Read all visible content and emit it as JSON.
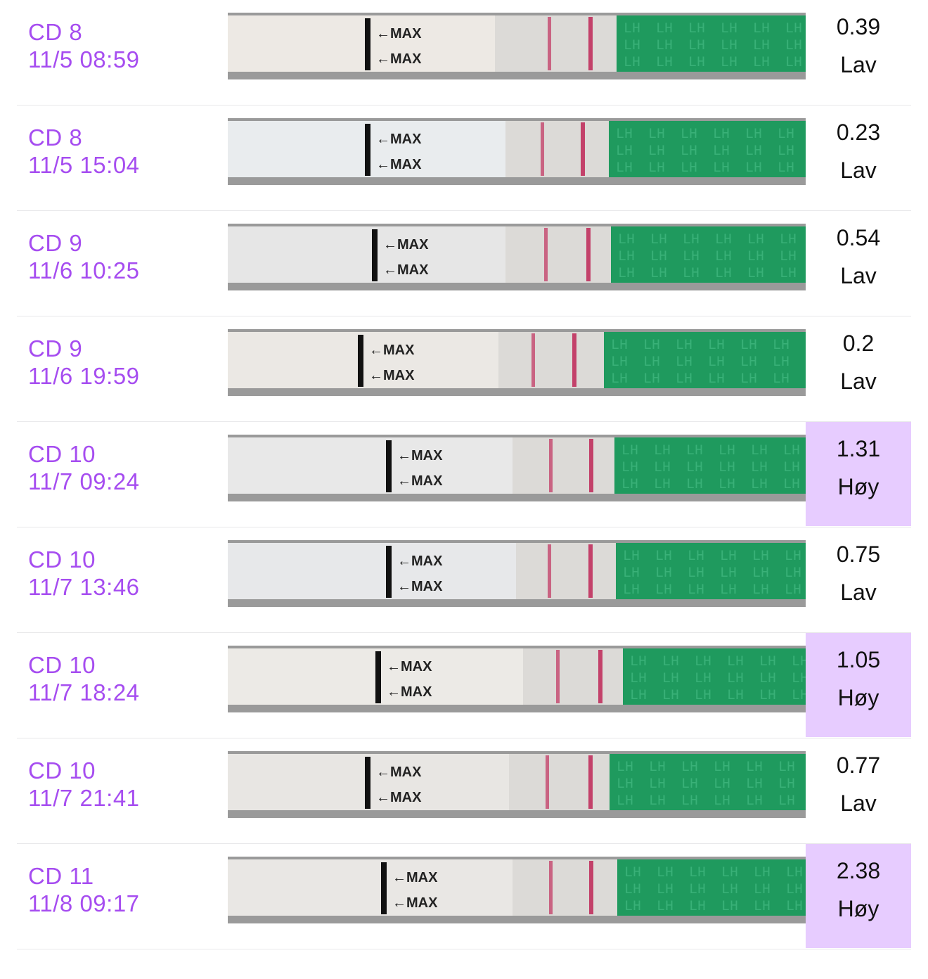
{
  "colors": {
    "label": "#a64df0",
    "high_highlight": "#e7ccff",
    "strip_green": "#1f9a5e",
    "test_line": "#c0305e"
  },
  "rows": [
    {
      "cd": "CD 8",
      "datetime": "11/5 08:59",
      "value": "0.39",
      "level": "Lav",
      "high": false,
      "strip_max_labels": [
        "MAX",
        "MAX"
      ],
      "strip_window_text": "LH"
    },
    {
      "cd": "CD 8",
      "datetime": "11/5 15:04",
      "value": "0.23",
      "level": "Lav",
      "high": false,
      "strip_max_labels": [
        "MAX",
        "MAX"
      ],
      "strip_window_text": "LH"
    },
    {
      "cd": "CD 9",
      "datetime": "11/6 10:25",
      "value": "0.54",
      "level": "Lav",
      "high": false,
      "strip_max_labels": [
        "MAX",
        "MAX"
      ],
      "strip_window_text": "LH"
    },
    {
      "cd": "CD 9",
      "datetime": "11/6 19:59",
      "value": "0.2",
      "level": "Lav",
      "high": false,
      "strip_max_labels": [
        "MAX",
        "MAX"
      ],
      "strip_window_text": "LH"
    },
    {
      "cd": "CD 10",
      "datetime": "11/7 09:24",
      "value": "1.31",
      "level": "Høy",
      "high": true,
      "strip_max_labels": [
        "MAX",
        "MAX"
      ],
      "strip_window_text": "LH"
    },
    {
      "cd": "CD 10",
      "datetime": "11/7 13:46",
      "value": "0.75",
      "level": "Lav",
      "high": false,
      "strip_max_labels": [
        "MAX",
        "MAX"
      ],
      "strip_window_text": "LH"
    },
    {
      "cd": "CD 10",
      "datetime": "11/7 18:24",
      "value": "1.05",
      "level": "Høy",
      "high": true,
      "strip_max_labels": [
        "MAX",
        "MAX"
      ],
      "strip_window_text": "LH"
    },
    {
      "cd": "CD 10",
      "datetime": "11/7 21:41",
      "value": "0.77",
      "level": "Lav",
      "high": false,
      "strip_max_labels": [
        "MAX",
        "MAX"
      ],
      "strip_window_text": "LH"
    },
    {
      "cd": "CD 11",
      "datetime": "11/8 09:17",
      "value": "2.38",
      "level": "Høy",
      "high": true,
      "strip_max_labels": [
        "MAX",
        "MAX"
      ],
      "strip_window_text": "LH"
    }
  ]
}
